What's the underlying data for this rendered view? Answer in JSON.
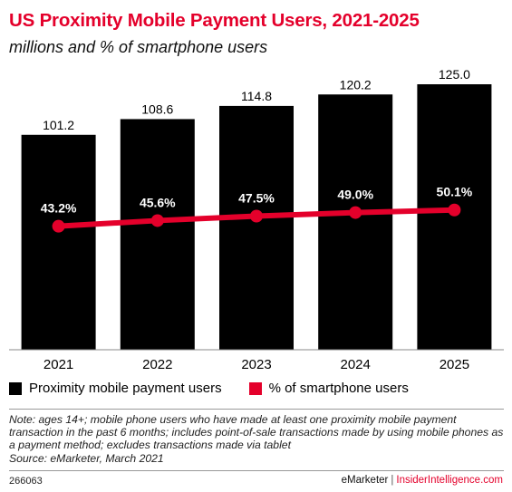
{
  "header": {
    "title": "US Proximity Mobile Payment Users, 2021-2025",
    "subtitle": "millions and % of smartphone users"
  },
  "colors": {
    "bar": "#000000",
    "line": "#e4002b",
    "accent": "#e4002b"
  },
  "chart_data": {
    "type": "bar",
    "categories": [
      "2021",
      "2022",
      "2023",
      "2024",
      "2025"
    ],
    "series": [
      {
        "name": "Proximity mobile payment users",
        "type": "bar",
        "values": [
          101.2,
          108.6,
          114.8,
          120.2,
          125.0
        ],
        "labels": [
          "101.2",
          "108.6",
          "114.8",
          "120.2",
          "125.0"
        ]
      },
      {
        "name": "% of smartphone users",
        "type": "line",
        "values": [
          43.2,
          45.6,
          47.5,
          49.0,
          50.1
        ],
        "labels": [
          "43.2%",
          "45.6%",
          "47.5%",
          "49.0%",
          "50.1%"
        ]
      }
    ],
    "ylim": [
      0,
      125
    ],
    "y2lim": [
      0,
      100
    ],
    "grid": false,
    "legend_position": "bottom-left"
  },
  "legend": {
    "items": [
      {
        "label": "Proximity mobile payment users",
        "color": "#000000"
      },
      {
        "label": "% of smartphone users",
        "color": "#e4002b"
      }
    ]
  },
  "note": {
    "text": "Note: ages 14+; mobile phone users who have made at least one proximity mobile payment transaction in the past 6 months; includes point-of-sale transactions made by using mobile phones as a payment method; excludes transactions made via tablet",
    "source": "Source: eMarketer, March 2021"
  },
  "footer": {
    "id": "266063",
    "brand": "eMarketer",
    "separator": "|",
    "site": "InsiderIntelligence.com"
  }
}
